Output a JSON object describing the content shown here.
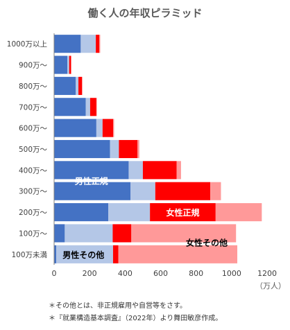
{
  "chart_data": {
    "type": "bar",
    "orientation": "horizontal",
    "stacked": true,
    "title": "働く人の年収ピラミッド",
    "categories": [
      "100万未満",
      "100万〜",
      "200万〜",
      "300万〜",
      "400万〜",
      "500万〜",
      "600万〜",
      "700万〜",
      "800万〜",
      "900万〜",
      "1000万以上"
    ],
    "series": [
      {
        "name": "男性正規",
        "color": "#4472c4",
        "values": [
          12,
          60,
          305,
          430,
          420,
          315,
          238,
          178,
          122,
          75,
          150
        ]
      },
      {
        "name": "男性その他",
        "color": "#b4c7e7",
        "values": [
          320,
          270,
          235,
          140,
          80,
          50,
          35,
          25,
          15,
          10,
          85
        ]
      },
      {
        "name": "女性正規",
        "color": "#ff0000",
        "values": [
          30,
          105,
          370,
          310,
          190,
          105,
          60,
          35,
          20,
          10,
          20
        ]
      },
      {
        "name": "女性その他",
        "color": "#ff9999",
        "values": [
          670,
          590,
          260,
          60,
          25,
          10,
          5,
          3,
          3,
          3,
          5
        ]
      }
    ],
    "inline_labels": [
      "男性正規",
      "男性その他",
      "女性正規",
      "女性その他"
    ],
    "xlim": [
      0,
      1200
    ],
    "xticks": [
      "0",
      "200",
      "400",
      "600",
      "800",
      "1000",
      "1200"
    ],
    "xunit": "（万人）",
    "grid": false
  },
  "notes": [
    "＊その他とは、非正規雇用や自営等をさす。",
    "＊『就業構造基本調査』（2022年）より舞田敏彦作成。"
  ]
}
